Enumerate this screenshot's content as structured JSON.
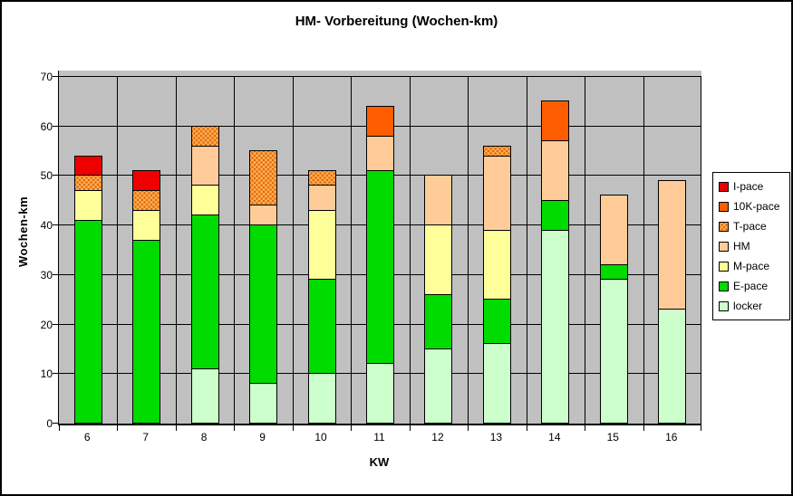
{
  "chart_data": {
    "type": "bar",
    "stacked": true,
    "title": "HM- Vorbereitung (Wochen-km)",
    "xlabel": "KW",
    "ylabel": "Wochen-km",
    "ylim": [
      0,
      70
    ],
    "ytick_step": 10,
    "yticks": [
      0,
      10,
      20,
      30,
      40,
      50,
      60,
      70
    ],
    "categories": [
      "6",
      "7",
      "8",
      "9",
      "10",
      "11",
      "12",
      "13",
      "14",
      "15",
      "16"
    ],
    "series": [
      {
        "name": "locker",
        "color": "#CCFFCC",
        "pattern": "solid",
        "values": [
          0,
          0,
          11,
          8,
          10,
          12,
          15,
          16,
          39,
          29,
          23
        ]
      },
      {
        "name": "E-pace",
        "color": "#00DB00",
        "pattern": "solid",
        "values": [
          41,
          37,
          31,
          32,
          19,
          39,
          11,
          9,
          6,
          3,
          0
        ]
      },
      {
        "name": "M-pace",
        "color": "#FFFF99",
        "pattern": "solid",
        "values": [
          6,
          6,
          6,
          0,
          14,
          0,
          14,
          14,
          0,
          0,
          0
        ]
      },
      {
        "name": "HM",
        "color": "#FFCC99",
        "pattern": "solid",
        "values": [
          0,
          0,
          8,
          4,
          5,
          7,
          10,
          15,
          12,
          14,
          26
        ]
      },
      {
        "name": "T-pace",
        "color": "#FFAE5C",
        "pattern": "dots",
        "values": [
          3,
          4,
          4,
          11,
          3,
          0,
          0,
          2,
          0,
          0,
          0
        ]
      },
      {
        "name": "10K-pace",
        "color": "#FF5E00",
        "pattern": "solid",
        "values": [
          0,
          0,
          0,
          0,
          0,
          6,
          0,
          0,
          8,
          0,
          0
        ]
      },
      {
        "name": "I-pace",
        "color": "#EE0000",
        "pattern": "solid",
        "values": [
          4,
          4,
          0,
          0,
          0,
          0,
          0,
          0,
          0,
          0,
          0
        ]
      }
    ],
    "totals": [
      54,
      51,
      60,
      55,
      51,
      64,
      50,
      56,
      65,
      46,
      49
    ],
    "legend_order_top_to_bottom": [
      "I-pace",
      "10K-pace",
      "T-pace",
      "HM",
      "M-pace",
      "E-pace",
      "locker"
    ],
    "legend_position": "right",
    "grid": true,
    "plot_background": "#C0C0C0",
    "gridline_color": "#000000"
  }
}
